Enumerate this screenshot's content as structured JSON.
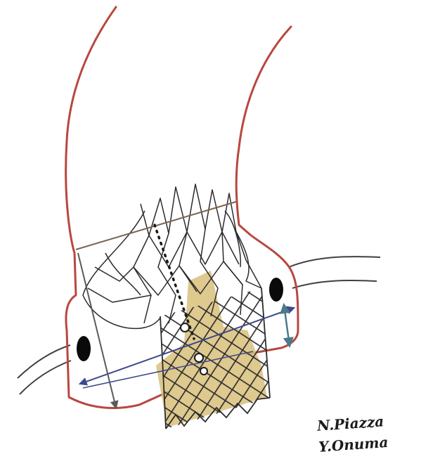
{
  "figure": {
    "signature": [
      "N.Piazza",
      "Y.Onuma"
    ]
  },
  "colors": {
    "anatomy_outline": "#b8473f",
    "coronary_artery": "#404040",
    "coronary_ostium": "#0a0a0a",
    "valve_frame": "#2b2b2b",
    "leaflet_fill": "#d8c07a",
    "annulus_line": "#7a6650",
    "measurement_blue": "#3d4a8a",
    "measurement_gray": "#5a5a5a",
    "measurement_teal": "#4a7a8c",
    "dotted_guide": "#1a1a1a"
  }
}
